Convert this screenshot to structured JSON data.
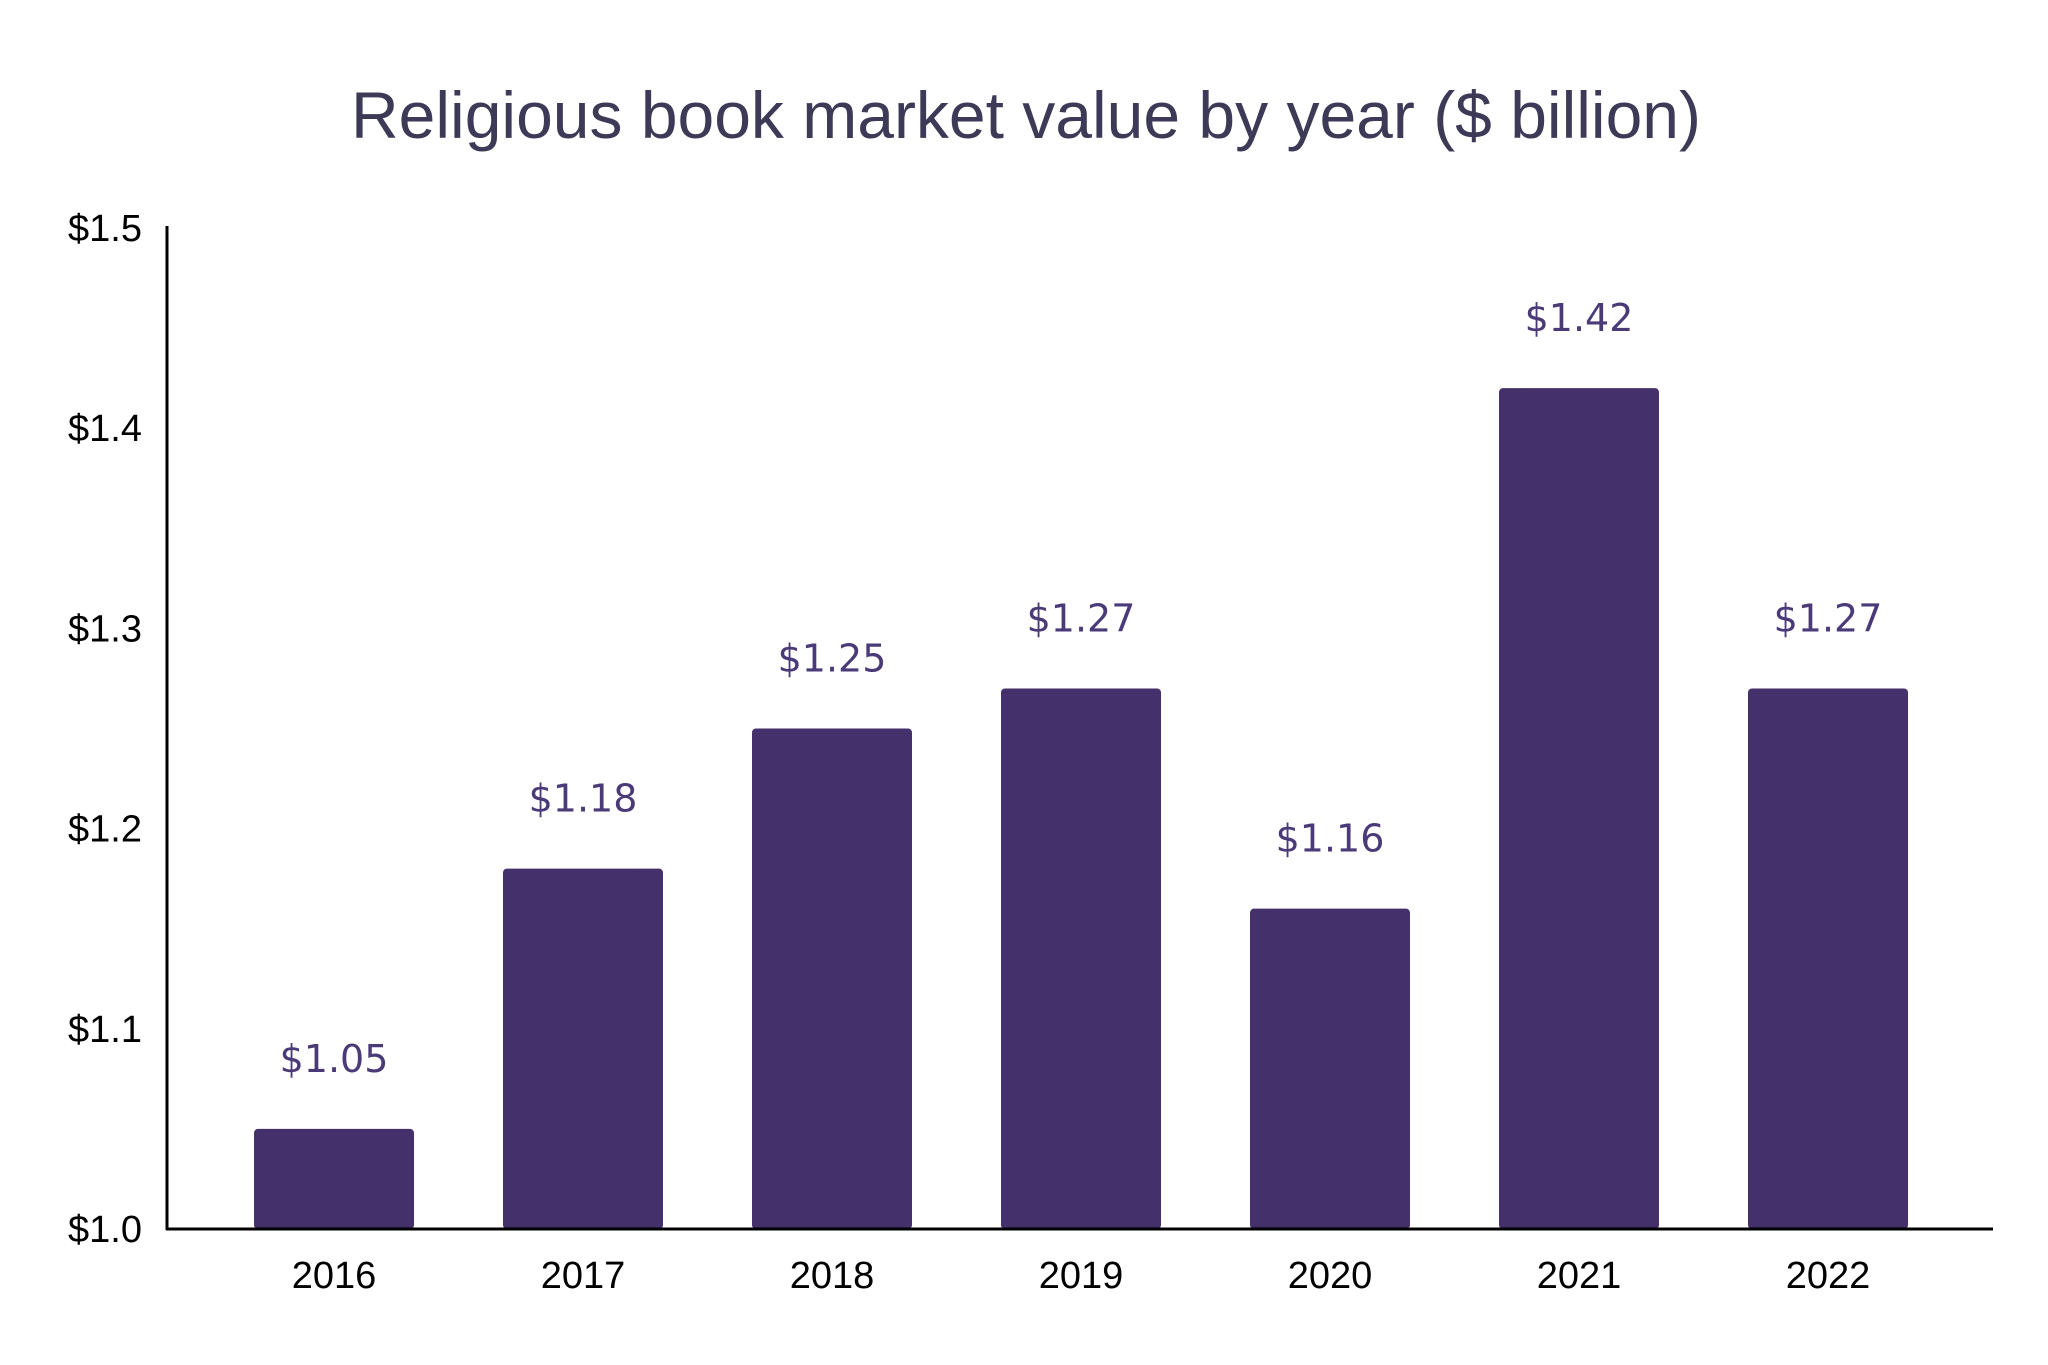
{
  "chart_data": {
    "type": "bar",
    "title": "Religious book market value by year ($ billion)",
    "xlabel": "",
    "ylabel": "",
    "categories": [
      "2016",
      "2017",
      "2018",
      "2019",
      "2020",
      "2021",
      "2022"
    ],
    "values": [
      1.05,
      1.18,
      1.25,
      1.27,
      1.16,
      1.42,
      1.27
    ],
    "data_labels": [
      "$1.05",
      "$1.18",
      "$1.25",
      "$1.27",
      "$1.16",
      "$1.42",
      "$1.27"
    ],
    "ylim": [
      1.0,
      1.5
    ],
    "yticks": [
      1.0,
      1.1,
      1.2,
      1.3,
      1.4,
      1.5
    ],
    "ytick_labels": [
      "$1.0",
      "$1.1",
      "$1.2",
      "$1.3",
      "$1.4",
      "$1.5"
    ],
    "grid": false,
    "legend": "none",
    "colors": {
      "bar": "#44306b",
      "label": "#4a3a78",
      "title": "#3d3a57"
    }
  }
}
